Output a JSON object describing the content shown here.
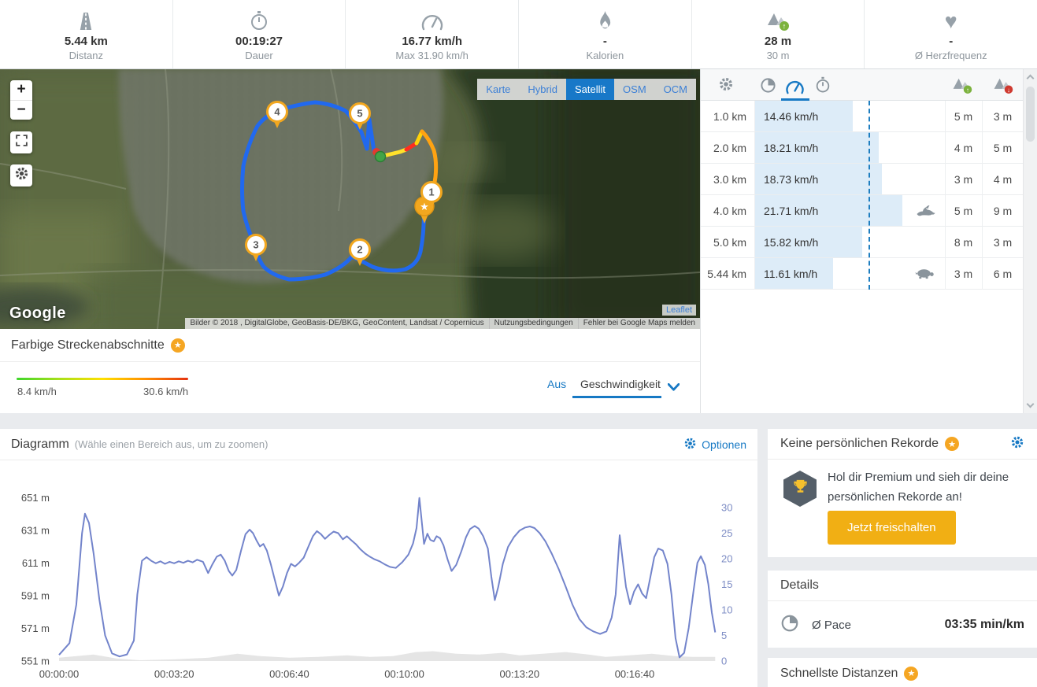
{
  "stats": {
    "items": [
      {
        "value": "5.44 km",
        "label": "Distanz"
      },
      {
        "value": "00:19:27",
        "label": "Dauer"
      },
      {
        "value": "16.77 km/h",
        "label": "Max 31.90 km/h"
      },
      {
        "value": "-",
        "label": "Kalorien"
      },
      {
        "value": "28 m",
        "label": "30 m"
      },
      {
        "value": "-",
        "label": "Ø Herzfrequenz"
      }
    ]
  },
  "map": {
    "zoom_in_label": "+",
    "zoom_out_label": "−",
    "layers": [
      "Karte",
      "Hybrid",
      "Satellit",
      "OSM",
      "OCM"
    ],
    "active_layer": "Satellit",
    "markers": [
      "1",
      "2",
      "3",
      "4",
      "5"
    ],
    "google_label": "Google",
    "leaflet_label": "Leaflet",
    "attribution": "Bilder © 2018 , DigitalGlobe, GeoBasis-DE/BKG, GeoContent, Landsat / Copernicus",
    "nutzung": "Nutzungsbedingungen",
    "fehler": "Fehler bei Google Maps melden"
  },
  "splits": {
    "avg_speed_kmh": 16.77,
    "rows": [
      {
        "km": "1.0 km",
        "speed": "14.46 km/h",
        "speed_kmh": 14.46,
        "gain": "5 m",
        "loss": "3 m",
        "badge": null
      },
      {
        "km": "2.0 km",
        "speed": "18.21 km/h",
        "speed_kmh": 18.21,
        "gain": "4 m",
        "loss": "5 m",
        "badge": null
      },
      {
        "km": "3.0 km",
        "speed": "18.73 km/h",
        "speed_kmh": 18.73,
        "gain": "3 m",
        "loss": "4 m",
        "badge": null
      },
      {
        "km": "4.0 km",
        "speed": "21.71 km/h",
        "speed_kmh": 21.71,
        "gain": "5 m",
        "loss": "9 m",
        "badge": "fastest"
      },
      {
        "km": "5.0 km",
        "speed": "15.82 km/h",
        "speed_kmh": 15.82,
        "gain": "8 m",
        "loss": "3 m",
        "badge": null
      },
      {
        "km": "5.44 km",
        "speed": "11.61 km/h",
        "speed_kmh": 11.61,
        "gain": "3 m",
        "loss": "6 m",
        "badge": "slowest"
      }
    ]
  },
  "gradient": {
    "title": "Farbige Streckenabschnitte",
    "min_label": "8.4 km/h",
    "max_label": "30.6 km/h",
    "off_label": "Aus",
    "mode_label": "Geschwindigkeit"
  },
  "diagram": {
    "title": "Diagramm",
    "hint": "(Wähle einen Bereich aus, um zu zoomen)",
    "options_label": "Optionen"
  },
  "records": {
    "title": "Keine persönlichen Rekorde",
    "text": "Hol dir Premium und sieh dir deine persönlichen Rekorde an!",
    "button_label": "Jetzt freischalten"
  },
  "details": {
    "title": "Details",
    "pace_label": "Ø Pace",
    "pace_value": "03:35 min/km"
  },
  "fastest": {
    "title": "Schnellste Distanzen"
  },
  "chart_data": {
    "type": "line",
    "title": "Diagramm",
    "x_unit": "seconds",
    "x_ticks": [
      {
        "t": 0,
        "label": "00:00:00"
      },
      {
        "t": 200,
        "label": "00:03:20"
      },
      {
        "t": 400,
        "label": "00:06:40"
      },
      {
        "t": 600,
        "label": "00:10:00"
      },
      {
        "t": 800,
        "label": "00:13:20"
      },
      {
        "t": 1000,
        "label": "00:16:40"
      }
    ],
    "left_axis": {
      "name": "elevation",
      "unit": "m",
      "min": 551,
      "max": 651,
      "ticks": [
        {
          "value": 651,
          "label": "651 m"
        },
        {
          "value": 631,
          "label": "631 m"
        },
        {
          "value": 611,
          "label": "611 m"
        },
        {
          "value": 591,
          "label": "591 m"
        },
        {
          "value": 571,
          "label": "571 m"
        },
        {
          "value": 551,
          "label": "551 m"
        }
      ]
    },
    "right_axis": {
      "name": "speed",
      "unit": "km/h",
      "min": 0,
      "max": 30,
      "ticks": [
        30,
        25,
        20,
        15,
        10,
        5,
        0
      ]
    },
    "series": [
      {
        "name": "speed_kmh",
        "axis": "right",
        "color": "#7384cb",
        "fill": false,
        "points": [
          [
            0,
            1.2
          ],
          [
            18,
            3.5
          ],
          [
            30,
            11
          ],
          [
            40,
            25
          ],
          [
            45,
            28.8
          ],
          [
            52,
            27
          ],
          [
            60,
            21
          ],
          [
            70,
            12
          ],
          [
            80,
            5
          ],
          [
            92,
            1.5
          ],
          [
            105,
            0.9
          ],
          [
            118,
            1.3
          ],
          [
            130,
            4
          ],
          [
            136,
            13
          ],
          [
            144,
            19.6
          ],
          [
            152,
            20.3
          ],
          [
            160,
            19.6
          ],
          [
            168,
            19.1
          ],
          [
            176,
            19.5
          ],
          [
            184,
            19.0
          ],
          [
            192,
            19.4
          ],
          [
            200,
            19.1
          ],
          [
            208,
            19.5
          ],
          [
            216,
            19.2
          ],
          [
            224,
            19.6
          ],
          [
            232,
            19.3
          ],
          [
            240,
            19.8
          ],
          [
            250,
            19.4
          ],
          [
            259,
            17.2
          ],
          [
            266,
            18.8
          ],
          [
            274,
            20.4
          ],
          [
            281,
            20.8
          ],
          [
            288,
            19.6
          ],
          [
            295,
            17.6
          ],
          [
            301,
            16.7
          ],
          [
            308,
            17.8
          ],
          [
            316,
            21.5
          ],
          [
            324,
            24.8
          ],
          [
            331,
            25.7
          ],
          [
            337,
            25.0
          ],
          [
            343,
            23.6
          ],
          [
            349,
            22.4
          ],
          [
            355,
            22.9
          ],
          [
            361,
            21.6
          ],
          [
            368,
            18.9
          ],
          [
            375,
            15.8
          ],
          [
            382,
            12.8
          ],
          [
            389,
            14.6
          ],
          [
            396,
            17.2
          ],
          [
            403,
            19.0
          ],
          [
            410,
            18.5
          ],
          [
            417,
            19.2
          ],
          [
            425,
            20.2
          ],
          [
            433,
            22.3
          ],
          [
            441,
            24.4
          ],
          [
            448,
            25.4
          ],
          [
            455,
            24.8
          ],
          [
            462,
            23.9
          ],
          [
            469,
            24.6
          ],
          [
            477,
            25.3
          ],
          [
            485,
            25.0
          ],
          [
            493,
            23.8
          ],
          [
            500,
            24.4
          ],
          [
            508,
            23.6
          ],
          [
            516,
            22.8
          ],
          [
            524,
            21.8
          ],
          [
            532,
            21.0
          ],
          [
            540,
            20.4
          ],
          [
            548,
            19.9
          ],
          [
            557,
            19.5
          ],
          [
            566,
            18.9
          ],
          [
            575,
            18.4
          ],
          [
            585,
            18.2
          ],
          [
            596,
            19.3
          ],
          [
            607,
            20.8
          ],
          [
            615,
            23.0
          ],
          [
            621,
            26.0
          ],
          [
            626,
            31.9
          ],
          [
            630,
            27.5
          ],
          [
            634,
            22.9
          ],
          [
            640,
            24.9
          ],
          [
            645,
            23.7
          ],
          [
            651,
            23.4
          ],
          [
            656,
            24.4
          ],
          [
            662,
            24.0
          ],
          [
            668,
            22.6
          ],
          [
            675,
            19.9
          ],
          [
            682,
            17.6
          ],
          [
            690,
            18.8
          ],
          [
            699,
            21.5
          ],
          [
            707,
            24.2
          ],
          [
            714,
            25.8
          ],
          [
            722,
            26.4
          ],
          [
            729,
            25.9
          ],
          [
            737,
            24.4
          ],
          [
            745,
            22.0
          ],
          [
            751,
            16.5
          ],
          [
            757,
            11.9
          ],
          [
            763,
            14.5
          ],
          [
            771,
            19.0
          ],
          [
            780,
            22.3
          ],
          [
            790,
            24.2
          ],
          [
            800,
            25.5
          ],
          [
            810,
            26.1
          ],
          [
            818,
            26.3
          ],
          [
            826,
            26.0
          ],
          [
            835,
            25.0
          ],
          [
            845,
            23.4
          ],
          [
            856,
            21.0
          ],
          [
            868,
            18.0
          ],
          [
            880,
            14.6
          ],
          [
            892,
            11.0
          ],
          [
            904,
            8.2
          ],
          [
            916,
            6.6
          ],
          [
            928,
            5.8
          ],
          [
            940,
            5.3
          ],
          [
            951,
            5.8
          ],
          [
            960,
            8.5
          ],
          [
            967,
            13.0
          ],
          [
            974,
            24.6
          ],
          [
            979,
            20.0
          ],
          [
            985,
            14.5
          ],
          [
            992,
            11.1
          ],
          [
            999,
            13.6
          ],
          [
            1006,
            15.0
          ],
          [
            1013,
            13.2
          ],
          [
            1020,
            12.3
          ],
          [
            1027,
            16.2
          ],
          [
            1034,
            20.3
          ],
          [
            1041,
            22.0
          ],
          [
            1049,
            21.6
          ],
          [
            1057,
            19.0
          ],
          [
            1064,
            13.0
          ],
          [
            1071,
            4.5
          ],
          [
            1078,
            0.7
          ],
          [
            1086,
            1.6
          ],
          [
            1094,
            6.5
          ],
          [
            1102,
            13.5
          ],
          [
            1109,
            19.2
          ],
          [
            1115,
            20.5
          ],
          [
            1122,
            18.8
          ],
          [
            1128,
            15.0
          ],
          [
            1134,
            9.5
          ],
          [
            1140,
            5.6
          ]
        ]
      },
      {
        "name": "elevation_m",
        "axis": "left",
        "color": "#e5e5e5",
        "fill": true,
        "points": [
          [
            0,
            553
          ],
          [
            60,
            555
          ],
          [
            100,
            552.5
          ],
          [
            140,
            551.5
          ],
          [
            200,
            552
          ],
          [
            260,
            553
          ],
          [
            310,
            555.5
          ],
          [
            350,
            554
          ],
          [
            400,
            553
          ],
          [
            450,
            553.5
          ],
          [
            500,
            554.5
          ],
          [
            540,
            553.5
          ],
          [
            580,
            554
          ],
          [
            620,
            556.5
          ],
          [
            650,
            557
          ],
          [
            690,
            555.5
          ],
          [
            730,
            555
          ],
          [
            770,
            556
          ],
          [
            800,
            554.5
          ],
          [
            840,
            555.5
          ],
          [
            880,
            556.5
          ],
          [
            920,
            555
          ],
          [
            950,
            553.5
          ],
          [
            990,
            554.5
          ],
          [
            1030,
            555.5
          ],
          [
            1070,
            554
          ],
          [
            1100,
            553.5
          ],
          [
            1140,
            553.5
          ]
        ]
      }
    ]
  }
}
